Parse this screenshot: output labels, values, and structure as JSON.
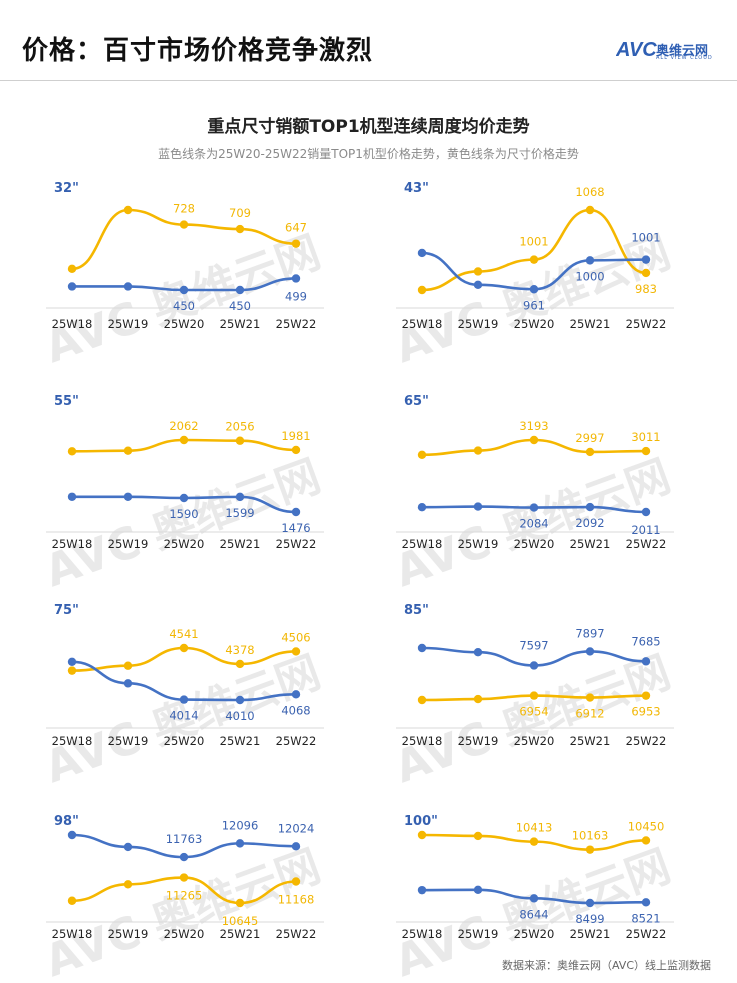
{
  "page": {
    "title": "价格：百寸市场价格竞争激烈",
    "logo_text": "奥维云网",
    "logo_sub": "ALL VIEW CLOUD",
    "source": "数据来源：奥维云网（AVC）线上监测数据"
  },
  "chart_title": "重点尺寸销额TOP1机型连续周度均价走势",
  "chart_subtitle": "蓝色线条为25W20-25W22销量TOP1机型价格走势，黄色线条为尺寸价格走势",
  "colors": {
    "blue": "#4472c4",
    "yellow": "#f5b700"
  },
  "chart_data": [
    {
      "type": "line",
      "size": "32\"",
      "categories": [
        "25W18",
        "25W19",
        "25W20",
        "25W21",
        "25W22"
      ],
      "series": [
        {
          "values": [
            null,
            null,
            728,
            709,
            647
          ],
          "approx": [
            540,
            790,
            728,
            709,
            647
          ]
        },
        {
          "values": [
            null,
            null,
            450,
            450,
            499
          ],
          "approx": [
            465,
            465,
            450,
            450,
            499
          ]
        }
      ]
    },
    {
      "type": "line",
      "size": "43\"",
      "categories": [
        "25W18",
        "25W19",
        "25W20",
        "25W21",
        "25W22"
      ],
      "series": [
        {
          "values": [
            null,
            null,
            1001,
            1068,
            983
          ],
          "approx": [
            960,
            985,
            1001,
            1068,
            983
          ]
        },
        {
          "values": [
            null,
            null,
            961,
            1000,
            1001
          ],
          "approx": [
            1010,
            967,
            961,
            1000,
            1001
          ]
        }
      ]
    },
    {
      "type": "line",
      "size": "55\"",
      "categories": [
        "25W18",
        "25W19",
        "25W20",
        "25W21",
        "25W22"
      ],
      "series": [
        {
          "values": [
            null,
            null,
            2062,
            2056,
            1981
          ],
          "approx": [
            1970,
            1975,
            2062,
            2056,
            1981
          ]
        },
        {
          "values": [
            null,
            null,
            1590,
            1599,
            1476
          ],
          "approx": [
            1600,
            1600,
            1590,
            1599,
            1476
          ]
        }
      ]
    },
    {
      "type": "line",
      "size": "65\"",
      "categories": [
        "25W18",
        "25W19",
        "25W20",
        "25W21",
        "25W22"
      ],
      "series": [
        {
          "values": [
            null,
            null,
            3193,
            2997,
            3011
          ],
          "approx": [
            2950,
            3020,
            3193,
            2997,
            3011
          ]
        },
        {
          "values": [
            null,
            null,
            2084,
            2092,
            2011
          ],
          "approx": [
            2090,
            2100,
            2084,
            2092,
            2011
          ]
        }
      ]
    },
    {
      "type": "line",
      "size": "75\"",
      "categories": [
        "25W18",
        "25W19",
        "25W20",
        "25W21",
        "25W22"
      ],
      "series": [
        {
          "values": [
            null,
            null,
            4541,
            4378,
            4506
          ],
          "approx": [
            4310,
            4360,
            4541,
            4378,
            4506
          ]
        },
        {
          "values": [
            null,
            null,
            4014,
            4010,
            4068
          ],
          "approx": [
            4400,
            4180,
            4014,
            4010,
            4068
          ]
        }
      ]
    },
    {
      "type": "line",
      "size": "85\"",
      "categories": [
        "25W18",
        "25W19",
        "25W20",
        "25W21",
        "25W22"
      ],
      "series": [
        {
          "values": [
            null,
            null,
            6954,
            6912,
            6953
          ],
          "approx": [
            6860,
            6880,
            6954,
            6912,
            6953
          ]
        },
        {
          "values": [
            null,
            null,
            7597,
            7897,
            7685
          ],
          "approx": [
            7970,
            7880,
            7597,
            7897,
            7685
          ]
        }
      ]
    },
    {
      "type": "line",
      "size": "98\"",
      "categories": [
        "25W18",
        "25W19",
        "25W20",
        "25W21",
        "25W22"
      ],
      "series": [
        {
          "values": [
            null,
            null,
            11265,
            10645,
            11168
          ],
          "approx": [
            10700,
            11100,
            11265,
            10645,
            11168
          ]
        },
        {
          "values": [
            null,
            null,
            11763,
            12096,
            12024
          ],
          "approx": [
            12300,
            12010,
            11763,
            12096,
            12024
          ]
        }
      ]
    },
    {
      "type": "line",
      "size": "100\"",
      "categories": [
        "25W18",
        "25W19",
        "25W20",
        "25W21",
        "25W22"
      ],
      "series": [
        {
          "values": [
            null,
            null,
            10413,
            10163,
            10450
          ],
          "approx": [
            10620,
            10590,
            10413,
            10163,
            10450
          ]
        },
        {
          "values": [
            null,
            null,
            8644,
            8499,
            8521
          ],
          "approx": [
            8900,
            8910,
            8644,
            8499,
            8521
          ]
        }
      ]
    }
  ]
}
